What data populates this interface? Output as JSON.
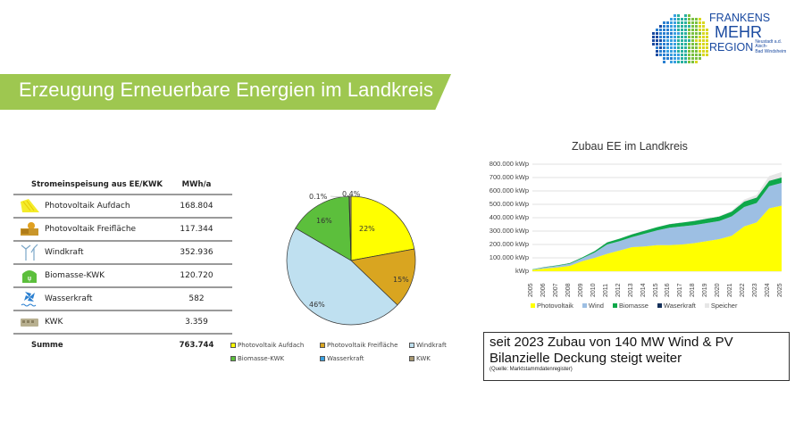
{
  "header": {
    "title": "Erzeugung Erneuerbare Energien im Landkreis",
    "banner_color": "#9ec750"
  },
  "logo": {
    "line1": "FRANKENS",
    "line2": "MEHR",
    "line3": "REGION",
    "subtitle_1": "Neustadt a.d. Aisch-",
    "subtitle_2": "Bad Windsheim"
  },
  "table": {
    "header_label": "Stromeinspeisung aus EE/KWK",
    "header_unit": "MWh/a",
    "rows": [
      {
        "icon": "solar-roof-icon",
        "label": "Photovoltaik Aufdach",
        "value": "168.804"
      },
      {
        "icon": "solar-field-icon",
        "label": "Photovoltaik Freifläche",
        "value": "117.344"
      },
      {
        "icon": "wind-turbine-icon",
        "label": "Windkraft",
        "value": "352.936"
      },
      {
        "icon": "biomass-icon",
        "label": "Biomasse-KWK",
        "value": "120.720"
      },
      {
        "icon": "hydro-turbine-icon",
        "label": "Wasserkraft",
        "value": "582"
      },
      {
        "icon": "chp-unit-icon",
        "label": "KWK",
        "value": "3.359"
      }
    ],
    "sum_label": "Summe",
    "sum_value": "763.744"
  },
  "note": {
    "line1": "seit 2023 Zubau von 140 MW Wind & PV",
    "line2": "Bilanzielle Deckung steigt weiter",
    "source": "(Quelle: Marktstammdatenregister)"
  },
  "chart_data": [
    {
      "type": "pie",
      "title": "",
      "categories": [
        "Photovoltaik Aufdach",
        "Photovoltaik Freifläche",
        "Windkraft",
        "Biomasse-KWK",
        "Wasserkraft",
        "KWK"
      ],
      "values": [
        22,
        15,
        46,
        16,
        0.1,
        0.4
      ],
      "labels": [
        "22%",
        "15%",
        "46%",
        "16%",
        "0.1%",
        "0.4%"
      ],
      "colors": [
        "#ffff00",
        "#d9a520",
        "#bfe0f0",
        "#5cbf3c",
        "#3aa0e0",
        "#a89870"
      ],
      "legend_position": "bottom"
    },
    {
      "type": "area",
      "stacked": true,
      "title": "Zubau EE im Landkreis",
      "xlabel": "",
      "ylabel": "",
      "x": [
        "2005",
        "2006",
        "2007",
        "2008",
        "2009",
        "2010",
        "2011",
        "2012",
        "2013",
        "2014",
        "2015",
        "2016",
        "2017",
        "2018",
        "2019",
        "2020",
        "2021",
        "2022",
        "2023",
        "2024",
        "2025"
      ],
      "yticks": [
        "kWp",
        "100.000 kWp",
        "200.000 kWp",
        "300.000 kWp",
        "400.000 kWp",
        "500.000 kWp",
        "600.000 kWp",
        "700.000 kWp",
        "800.000 kWp"
      ],
      "ylim": [
        0,
        800000
      ],
      "grid": true,
      "legend_position": "bottom",
      "series": [
        {
          "name": "Photovoltaik",
          "color": "#ffff00",
          "values": [
            10000,
            20000,
            28000,
            40000,
            75000,
            100000,
            130000,
            155000,
            180000,
            185000,
            195000,
            195000,
            200000,
            210000,
            225000,
            240000,
            265000,
            335000,
            365000,
            470000,
            490000
          ]
        },
        {
          "name": "Wind",
          "color": "#9dbfe3",
          "values": [
            2000,
            8000,
            12000,
            15000,
            22000,
            40000,
            70000,
            70000,
            75000,
            95000,
            110000,
            130000,
            135000,
            135000,
            135000,
            135000,
            145000,
            145000,
            145000,
            165000,
            170000
          ]
        },
        {
          "name": "Biomasse",
          "color": "#0ea84a",
          "values": [
            2000,
            3000,
            4000,
            5000,
            6000,
            10000,
            15000,
            18000,
            20000,
            22000,
            24000,
            26000,
            28000,
            30000,
            32000,
            34000,
            35000,
            40000,
            40000,
            40000,
            40000
          ]
        },
        {
          "name": "Waserkraft",
          "color": "#14305a",
          "values": [
            500,
            500,
            500,
            500,
            500,
            500,
            500,
            500,
            500,
            500,
            500,
            500,
            500,
            500,
            500,
            500,
            500,
            500,
            500,
            500,
            500
          ]
        },
        {
          "name": "Speicher",
          "color": "#e6e6e6",
          "values": [
            0,
            0,
            0,
            0,
            0,
            0,
            0,
            0,
            0,
            0,
            0,
            0,
            0,
            0,
            0,
            3000,
            6000,
            15000,
            20000,
            35000,
            40000
          ]
        }
      ]
    }
  ]
}
